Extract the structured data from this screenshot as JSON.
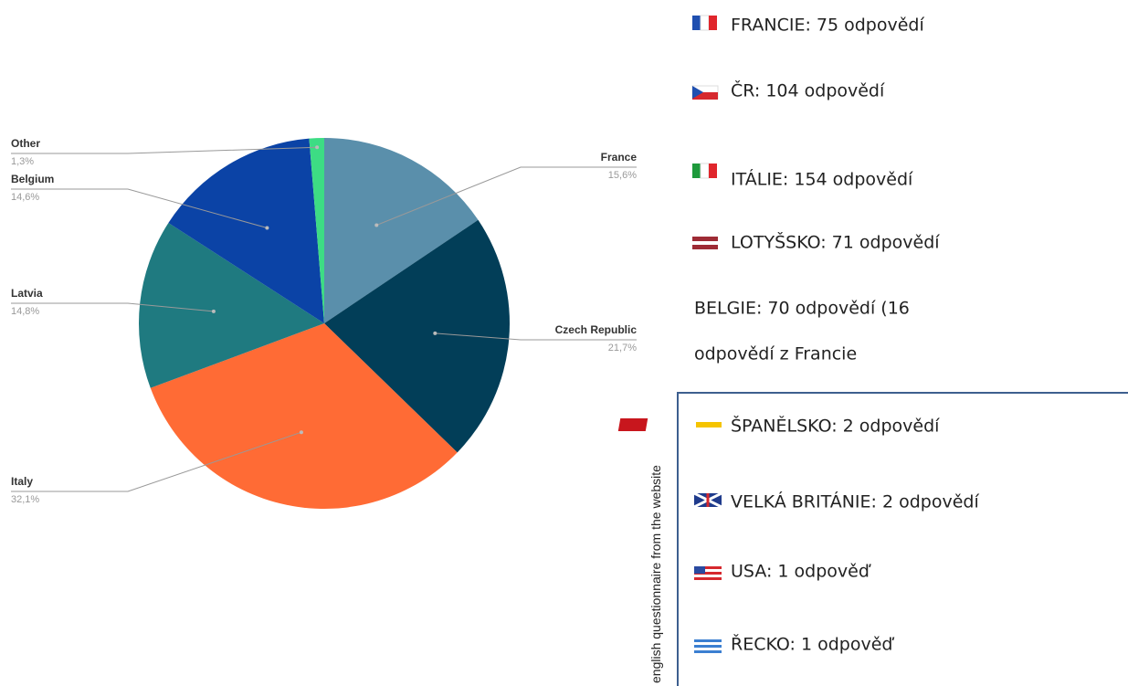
{
  "chart_data": {
    "type": "pie",
    "categories": [
      "France",
      "Czech Republic",
      "Italy",
      "Latvia",
      "Belgium",
      "Other"
    ],
    "values": [
      15.6,
      21.7,
      32.1,
      14.8,
      14.6,
      1.3
    ],
    "value_labels": [
      "15,6%",
      "21,7%",
      "32,1%",
      "14,8%",
      "14,6%",
      "1,3%"
    ],
    "colors": [
      "#5a8fab",
      "#023e58",
      "#ff6b35",
      "#1f7a80",
      "#0b43a6",
      "#3ddc84"
    ]
  },
  "list": {
    "items": [
      "FRANCIE: 75 odpovědí",
      "ČR: 104 odpovědí",
      "ITÁLIE: 154 odpovědí",
      "LOTYŠSKO: 71 odpovědí",
      "BELGIE: 70 odpovědí (16",
      "odpovědí z Francie"
    ],
    "box_title": "english questionnaire from the website",
    "box_items": [
      "ŠPANĚLSKO: 2 odpovědí",
      "VELKÁ BRITÁNIE: 2 odpovědí",
      "USA: 1 odpověď",
      "ŘECKO: 1 odpověď"
    ]
  }
}
